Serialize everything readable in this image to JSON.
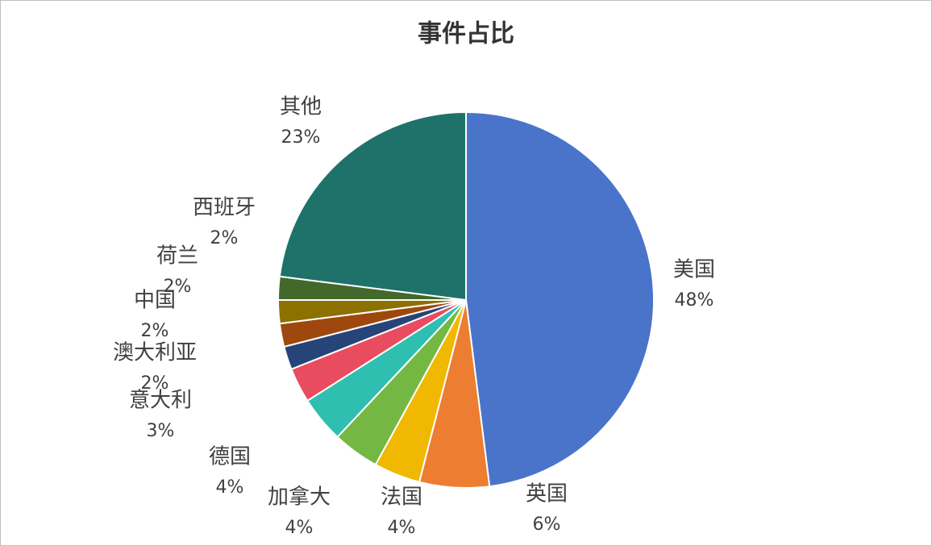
{
  "chart_data": {
    "type": "pie",
    "title": "事件占比",
    "categories": [
      "美国",
      "英国",
      "法国",
      "加拿大",
      "德国",
      "意大利",
      "澳大利亚",
      "中国",
      "荷兰",
      "西班牙",
      "其他"
    ],
    "values": [
      48,
      6,
      4,
      4,
      4,
      3,
      2,
      2,
      2,
      2,
      23
    ],
    "value_labels": [
      "48%",
      "6%",
      "4%",
      "4%",
      "4%",
      "3%",
      "2%",
      "2%",
      "2%",
      "2%",
      "23%"
    ],
    "colors": [
      "#4a74c9",
      "#ed7d31",
      "#f0b800",
      "#74b843",
      "#2fbfb0",
      "#e84c5e",
      "#264478",
      "#9e480e",
      "#8c7000",
      "#43682b",
      "#1e7269"
    ]
  }
}
